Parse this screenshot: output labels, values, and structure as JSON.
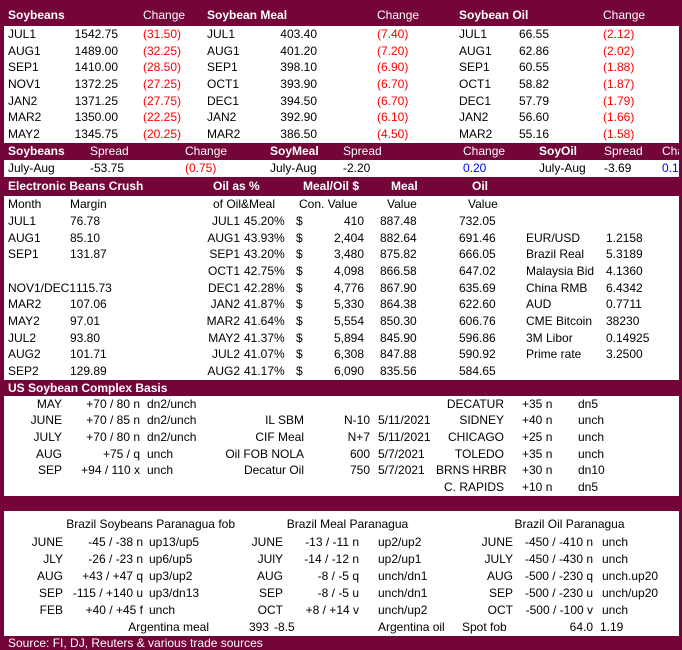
{
  "colors": {
    "accent": "#730538",
    "negative": "#ff0000",
    "positive": "#0000ff"
  },
  "futures": {
    "groups": [
      {
        "title": "Soybeans",
        "change_label": "Change",
        "rows": [
          {
            "contract": "JUL1",
            "price": "1542.75",
            "change": "(31.50)"
          },
          {
            "contract": "AUG1",
            "price": "1489.00",
            "change": "(32.25)"
          },
          {
            "contract": "SEP1",
            "price": "1410.00",
            "change": "(28.50)"
          },
          {
            "contract": "NOV1",
            "price": "1372.25",
            "change": "(27.25)"
          },
          {
            "contract": "JAN2",
            "price": "1371.25",
            "change": "(27.75)"
          },
          {
            "contract": "MAR2",
            "price": "1350.00",
            "change": "(22.25)"
          },
          {
            "contract": "MAY2",
            "price": "1345.75",
            "change": "(20.25)"
          }
        ]
      },
      {
        "title": "Soybean Meal",
        "change_label": "Change",
        "rows": [
          {
            "contract": "JUL1",
            "price": "403.40",
            "change": "(7.40)"
          },
          {
            "contract": "AUG1",
            "price": "401.20",
            "change": "(7.20)"
          },
          {
            "contract": "SEP1",
            "price": "398.10",
            "change": "(6.90)"
          },
          {
            "contract": "OCT1",
            "price": "393.90",
            "change": "(6.70)"
          },
          {
            "contract": "DEC1",
            "price": "394.50",
            "change": "(6.70)"
          },
          {
            "contract": "JAN2",
            "price": "392.90",
            "change": "(6.10)"
          },
          {
            "contract": "MAR2",
            "price": "386.50",
            "change": "(4.50)"
          }
        ]
      },
      {
        "title": "Soybean Oil",
        "change_label": "Change",
        "rows": [
          {
            "contract": "JUL1",
            "price": "66.55",
            "change": "(2.12)"
          },
          {
            "contract": "AUG1",
            "price": "62.86",
            "change": "(2.02)"
          },
          {
            "contract": "SEP1",
            "price": "60.55",
            "change": "(1.88)"
          },
          {
            "contract": "OCT1",
            "price": "58.82",
            "change": "(1.87)"
          },
          {
            "contract": "DEC1",
            "price": "57.79",
            "change": "(1.79)"
          },
          {
            "contract": "JAN2",
            "price": "56.60",
            "change": "(1.66)"
          },
          {
            "contract": "MAR2",
            "price": "55.16",
            "change": "(1.58)"
          }
        ]
      }
    ]
  },
  "spreads": {
    "groups": [
      {
        "title": "Soybeans",
        "spread_label": "Spread",
        "change_label": "Change",
        "period": "July-Aug",
        "spread": "-53.75",
        "change": "(0.75)",
        "change_color": "red"
      },
      {
        "title": "SoyMeal",
        "spread_label": "Spread",
        "change_label": "Change",
        "period": "July-Aug",
        "spread": "-2.20",
        "change": "0.20",
        "change_color": "blue"
      },
      {
        "title": "SoyOil",
        "spread_label": "Spread",
        "change_label": "Change",
        "period": "July-Aug",
        "spread": "-3.69",
        "change": "0.10",
        "change_color": "blue"
      }
    ]
  },
  "crush": {
    "title": "Electronic Beans Crush",
    "header": {
      "oil_pct": "Oil as %",
      "meal_oil": "Meal/Oil $",
      "meal": "Meal",
      "oil": "Oil"
    },
    "subheader": {
      "month": "Month",
      "margin": "Margin",
      "oil_pct": "of Oil&Meal",
      "con_value": "Con. Value",
      "meal_value": "Value",
      "oil_value": "Value"
    },
    "rows": [
      {
        "month": "JUL1",
        "margin": "76.78",
        "contract": "JUL1",
        "oil_pct": "45.20%",
        "dollar": "$",
        "con_value": "410",
        "meal_value": "887.48",
        "oil_value": "732.05",
        "fx_label": "",
        "fx_value": ""
      },
      {
        "month": "AUG1",
        "margin": "85.10",
        "contract": "AUG1",
        "oil_pct": "43.93%",
        "dollar": "$",
        "con_value": "2,404",
        "meal_value": "882.64",
        "oil_value": "691.46",
        "fx_label": "EUR/USD",
        "fx_value": "1.2158"
      },
      {
        "month": "SEP1",
        "margin": "131.87",
        "contract": "SEP1",
        "oil_pct": "43.20%",
        "dollar": "$",
        "con_value": "3,480",
        "meal_value": "875.82",
        "oil_value": "666.05",
        "fx_label": "Brazil Real",
        "fx_value": "5.3189"
      },
      {
        "month": "",
        "margin": "",
        "contract": "OCT1",
        "oil_pct": "42.75%",
        "dollar": "$",
        "con_value": "4,098",
        "meal_value": "866.58",
        "oil_value": "647.02",
        "fx_label": "Malaysia Bid",
        "fx_value": "4.1360"
      },
      {
        "month": "NOV1/DEC1",
        "margin": "115.73",
        "contract": "DEC1",
        "oil_pct": "42.28%",
        "dollar": "$",
        "con_value": "4,776",
        "meal_value": "867.90",
        "oil_value": "635.69",
        "fx_label": "China RMB",
        "fx_value": "6.4342"
      },
      {
        "month": "MAR2",
        "margin": "107.06",
        "contract": "JAN2",
        "oil_pct": "41.87%",
        "dollar": "$",
        "con_value": "5,330",
        "meal_value": "864.38",
        "oil_value": "622.60",
        "fx_label": "AUD",
        "fx_value": "0.7711"
      },
      {
        "month": "MAY2",
        "margin": "97.01",
        "contract": "MAR2",
        "oil_pct": "41.64%",
        "dollar": "$",
        "con_value": "5,554",
        "meal_value": "850.30",
        "oil_value": "606.76",
        "fx_label": "CME Bitcoin",
        "fx_value": "38230"
      },
      {
        "month": "JUL2",
        "margin": "93.80",
        "contract": "MAY2",
        "oil_pct": "41.37%",
        "dollar": "$",
        "con_value": "5,894",
        "meal_value": "845.90",
        "oil_value": "596.86",
        "fx_label": "3M Libor",
        "fx_value": "0.14925"
      },
      {
        "month": "AUG2",
        "margin": "101.71",
        "contract": "JUL2",
        "oil_pct": "41.07%",
        "dollar": "$",
        "con_value": "6,308",
        "meal_value": "847.88",
        "oil_value": "590.92",
        "fx_label": "Prime rate",
        "fx_value": "3.2500"
      },
      {
        "month": "SEP2",
        "margin": "129.89",
        "contract": "AUG2",
        "oil_pct": "41.17%",
        "dollar": "$",
        "con_value": "6,090",
        "meal_value": "835.56",
        "oil_value": "584.65",
        "fx_label": "",
        "fx_value": ""
      }
    ]
  },
  "basis": {
    "title": "US Soybean Complex Basis",
    "rows": [
      {
        "month": "MAY",
        "bid": "+70 / 80 n",
        "chg": "dn2/unch",
        "label": "",
        "value": "",
        "date": "",
        "loc": "DECATUR",
        "loc_bid": "+35 n",
        "loc_chg": "dn5"
      },
      {
        "month": "JUNE",
        "bid": "+70 / 85 n",
        "chg": "dn2/unch",
        "label": "IL SBM",
        "value": "N-10",
        "date": "5/11/2021",
        "loc": "SIDNEY",
        "loc_bid": "+40 n",
        "loc_chg": "unch"
      },
      {
        "month": "JULY",
        "bid": "+70 / 80 n",
        "chg": "dn2/unch",
        "label": "CIF Meal",
        "value": "N+7",
        "date": "5/11/2021",
        "loc": "CHICAGO",
        "loc_bid": "+25 n",
        "loc_chg": "unch"
      },
      {
        "month": "AUG",
        "bid": "+75 / q",
        "chg": "unch",
        "label": "Oil FOB NOLA",
        "value": "600",
        "date": "5/7/2021",
        "loc": "TOLEDO",
        "loc_bid": "+35 n",
        "loc_chg": "unch"
      },
      {
        "month": "SEP",
        "bid": "+94 / 110 x",
        "chg": "unch",
        "label": "Decatur Oil",
        "value": "750",
        "date": "5/7/2021",
        "loc": "BRNS HRBR",
        "loc_bid": "+30 n",
        "loc_chg": "dn10"
      },
      {
        "month": "",
        "bid": "",
        "chg": "",
        "label": "",
        "value": "",
        "date": "",
        "loc": "C. RAPIDS",
        "loc_bid": "+10 n",
        "loc_chg": "dn5"
      }
    ]
  },
  "brazil": {
    "groups": [
      {
        "title": "Brazil Soybeans Paranagua fob",
        "rows": [
          {
            "month": "JUNE",
            "bid": "-45 / -38 n",
            "chg": "up13/up5"
          },
          {
            "month": "JLY",
            "bid": "-26 / -23 n",
            "chg": "up6/up5"
          },
          {
            "month": "AUG",
            "bid": "+43 / +47 q",
            "chg": "up3/up2"
          },
          {
            "month": "SEP",
            "bid": "-115 / +140 u",
            "chg": "up3/dn13"
          },
          {
            "month": "FEB",
            "bid": "+40 / +45 f",
            "chg": "unch"
          }
        ]
      },
      {
        "title": "Brazil Meal Paranagua",
        "rows": [
          {
            "month": "JUNE",
            "bid": "-13 / -11 n",
            "chg": "up2/up2"
          },
          {
            "month": "JUlY",
            "bid": "-14 / -12 n",
            "chg": "up2/up1"
          },
          {
            "month": "AUG",
            "bid": "-8 / -5 q",
            "chg": "unch/dn1"
          },
          {
            "month": "SEP",
            "bid": "-8 / -5 u",
            "chg": "unch/dn1"
          },
          {
            "month": "OCT",
            "bid": "+8 / +14 v",
            "chg": "unch/up2"
          }
        ]
      },
      {
        "title": "Brazil Oil Paranagua",
        "rows": [
          {
            "month": "JUNE",
            "bid": "-450 / -410 n",
            "chg": "unch"
          },
          {
            "month": "JULY",
            "bid": "-450 / -430 n",
            "chg": "unch"
          },
          {
            "month": "AUG",
            "bid": "-500 / -230 q",
            "chg": "unch.up20"
          },
          {
            "month": "SEP",
            "bid": "-500 / -230 u",
            "chg": "unch/up20"
          },
          {
            "month": "OCT",
            "bid": "-500 / -100 v",
            "chg": "unch"
          }
        ]
      }
    ],
    "argentina_row": {
      "meal_label": "Argentina meal",
      "meal_value": "393",
      "meal_change": "-8.5",
      "oil_label": "Argentina oil",
      "spot_label": "Spot fob",
      "spot_value": "64.0",
      "spot_change": "1.19"
    }
  },
  "footer": {
    "source": "Source: FI, DJ, Reuters & various trade sources"
  }
}
